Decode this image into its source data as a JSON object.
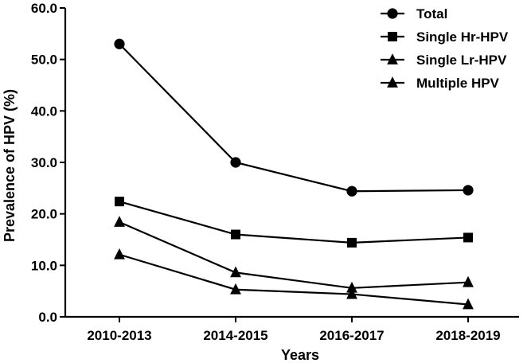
{
  "chart_data": {
    "type": "line",
    "title": "",
    "xlabel": "Years",
    "ylabel": "Prevalence of HPV (%)",
    "categories": [
      "2010-2013",
      "2014-2015",
      "2016-2017",
      "2018-2019"
    ],
    "ylim": [
      0,
      60
    ],
    "yticks": [
      "0.0",
      "10.0",
      "20.0",
      "30.0",
      "40.0",
      "50.0",
      "60.0"
    ],
    "grid": false,
    "legend_position": "top-right",
    "series": [
      {
        "name": "Total",
        "marker": "circle",
        "values": [
          53.0,
          30.0,
          24.4,
          24.6
        ]
      },
      {
        "name": "Single Hr-HPV",
        "marker": "square",
        "values": [
          22.4,
          16.0,
          14.4,
          15.4
        ]
      },
      {
        "name": "Single Lr-HPV",
        "marker": "triangle",
        "values": [
          18.4,
          8.6,
          5.6,
          6.7
        ]
      },
      {
        "name": "Multiple HPV",
        "marker": "triangle",
        "values": [
          12.1,
          5.3,
          4.4,
          2.4
        ]
      }
    ]
  }
}
